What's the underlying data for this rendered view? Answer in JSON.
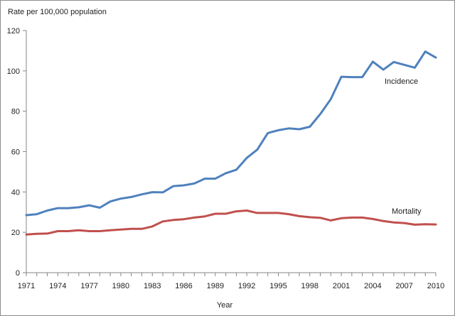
{
  "chart_data": {
    "type": "line",
    "title": "",
    "ylabel": "Rate per 100,000 population",
    "xlabel": "Year",
    "ylim": [
      0,
      120
    ],
    "yticks": [
      0,
      20,
      40,
      60,
      80,
      100,
      120
    ],
    "xlim": [
      1971,
      2010
    ],
    "xticks": [
      1971,
      1974,
      1977,
      1980,
      1983,
      1986,
      1989,
      1992,
      1995,
      1998,
      2001,
      2004,
      2007,
      2010
    ],
    "grid": false,
    "x": [
      1971,
      1972,
      1973,
      1974,
      1975,
      1976,
      1977,
      1978,
      1979,
      1980,
      1981,
      1982,
      1983,
      1984,
      1985,
      1986,
      1987,
      1988,
      1989,
      1990,
      1991,
      1992,
      1993,
      1994,
      1995,
      1996,
      1997,
      1998,
      1999,
      2000,
      2001,
      2002,
      2003,
      2004,
      2005,
      2006,
      2007,
      2008,
      2009,
      2010
    ],
    "series": [
      {
        "name": "Incidence",
        "color": "#4f81bd",
        "values": [
          28.5,
          29.0,
          30.8,
          32.0,
          32.0,
          32.4,
          33.4,
          32.2,
          35.3,
          36.7,
          37.5,
          38.8,
          39.9,
          39.8,
          42.9,
          43.3,
          44.2,
          46.6,
          46.6,
          49.3,
          51.0,
          56.9,
          61.0,
          69.2,
          70.6,
          71.5,
          71.1,
          72.3,
          78.6,
          86.0,
          97.1,
          96.9,
          96.9,
          104.6,
          100.6,
          104.4,
          103.0,
          101.6,
          109.6,
          106.6
        ]
      },
      {
        "name": "Mortality",
        "color": "#c0504d",
        "values": [
          18.9,
          19.3,
          19.4,
          20.6,
          20.6,
          21.0,
          20.6,
          20.6,
          21.0,
          21.4,
          21.7,
          21.7,
          22.9,
          25.4,
          26.1,
          26.5,
          27.3,
          27.9,
          29.2,
          29.2,
          30.4,
          30.8,
          29.6,
          29.6,
          29.6,
          29.0,
          28.0,
          27.5,
          27.2,
          25.9,
          27.0,
          27.3,
          27.3,
          26.6,
          25.6,
          24.9,
          24.6,
          23.8,
          24.0,
          23.9
        ]
      }
    ]
  }
}
